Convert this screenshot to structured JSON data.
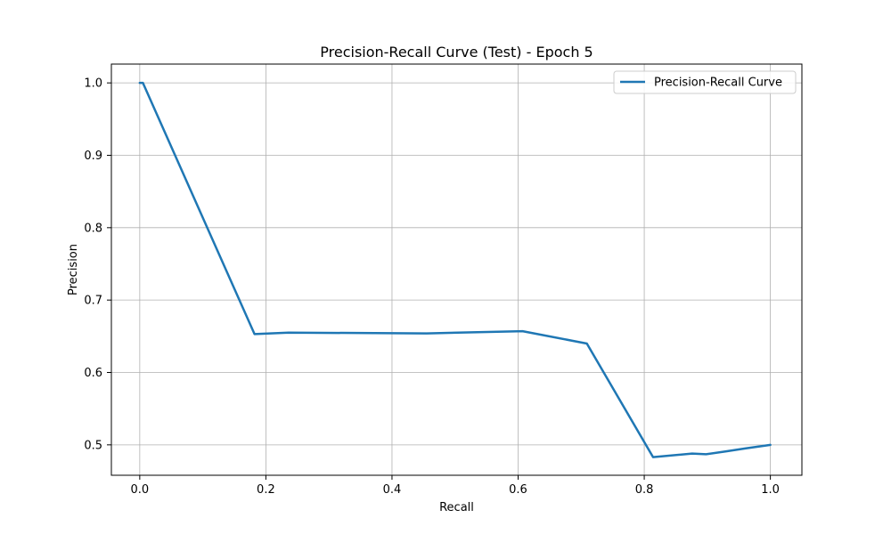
{
  "chart_data": {
    "type": "line",
    "title": "Precision-Recall Curve (Test) - Epoch 5",
    "xlabel": "Recall",
    "ylabel": "Precision",
    "xlim": [
      -0.045,
      1.05
    ],
    "ylim": [
      0.458,
      1.026
    ],
    "xticks": [
      0.0,
      0.2,
      0.4,
      0.6,
      0.8,
      1.0
    ],
    "yticks": [
      0.5,
      0.6,
      0.7,
      0.8,
      0.9,
      1.0
    ],
    "xtick_labels": [
      "0.0",
      "0.2",
      "0.4",
      "0.6",
      "0.8",
      "1.0"
    ],
    "ytick_labels": [
      "0.5",
      "0.6",
      "0.7",
      "0.8",
      "0.9",
      "1.0"
    ],
    "grid": true,
    "legend_position": "top-right",
    "series": [
      {
        "name": "Precision-Recall Curve",
        "color": "#1f77b4",
        "x": [
          0.0,
          0.005,
          0.182,
          0.236,
          0.455,
          0.607,
          0.709,
          0.814,
          0.876,
          0.898,
          0.93,
          0.96,
          1.0
        ],
        "y": [
          1.0,
          1.0,
          0.653,
          0.655,
          0.654,
          0.657,
          0.64,
          0.483,
          0.488,
          0.487,
          0.491,
          0.495,
          0.5
        ]
      }
    ]
  }
}
